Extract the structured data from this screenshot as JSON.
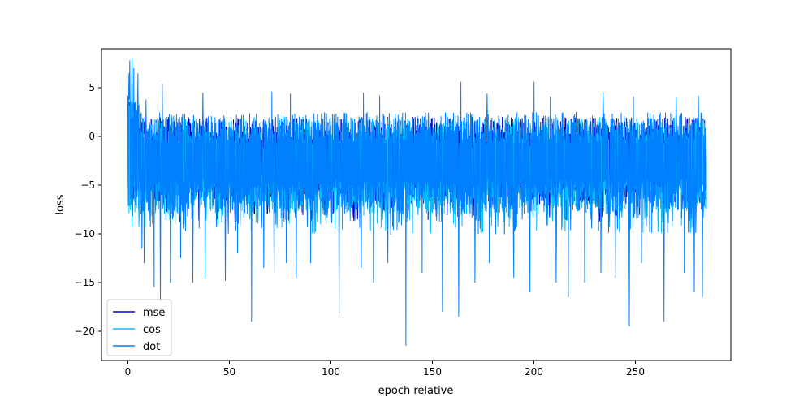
{
  "chart_data": {
    "type": "line",
    "title": "",
    "xlabel": "epoch relative",
    "ylabel": "loss",
    "xlim": [
      -13,
      297
    ],
    "ylim": [
      -23,
      9
    ],
    "xticks": [
      0,
      50,
      100,
      150,
      200,
      250
    ],
    "xtick_labels": [
      "0",
      "50",
      "100",
      "150",
      "200",
      "250"
    ],
    "yticks": [
      5,
      0,
      -5,
      -10,
      -15,
      -20
    ],
    "ytick_labels": [
      "5",
      "0",
      "−5",
      "−10",
      "−15",
      "−20"
    ],
    "grid": false,
    "legend_position": "lower-left",
    "series": [
      {
        "name": "mse",
        "color": "#0000cd",
        "x": [
          0,
          285
        ],
        "mean": -2.0,
        "upper": 2.0,
        "lower": -7.0,
        "low_spikes": [],
        "high_spikes": []
      },
      {
        "name": "cos",
        "color": "#00bfff",
        "x": [
          0,
          285
        ],
        "mean": -3.0,
        "upper": 2.0,
        "lower": -8.0,
        "low_spikes": [],
        "high_spikes": []
      },
      {
        "name": "dot",
        "color": "#0080ff",
        "x": [
          0,
          285
        ],
        "mean": -2.5,
        "upper": 2.5,
        "lower": -8.0,
        "high_spikes": [
          [
            0.5,
            6.5
          ],
          [
            1,
            7.8
          ],
          [
            2,
            8.0
          ],
          [
            3,
            7.0
          ],
          [
            4,
            6.2
          ],
          [
            5,
            6.5
          ],
          [
            9,
            3.8
          ],
          [
            17,
            5.4
          ],
          [
            26,
            4.0
          ],
          [
            37,
            4.5
          ],
          [
            71,
            4.6
          ],
          [
            80,
            4.4
          ],
          [
            104,
            4.1
          ],
          [
            116,
            4.5
          ],
          [
            124,
            4.2
          ],
          [
            164,
            5.6
          ],
          [
            177,
            4.4
          ],
          [
            200,
            5.6
          ],
          [
            208,
            4.1
          ],
          [
            234,
            4.5
          ],
          [
            249,
            4.1
          ],
          [
            270,
            4.0
          ],
          [
            281,
            4.2
          ]
        ],
        "low_spikes": [
          [
            7,
            -11.5
          ],
          [
            8,
            -13
          ],
          [
            13,
            -15.5
          ],
          [
            16,
            -17
          ],
          [
            21,
            -15
          ],
          [
            26,
            -12.5
          ],
          [
            32,
            -15
          ],
          [
            38,
            -14.5
          ],
          [
            48,
            -14.8
          ],
          [
            54,
            -12
          ],
          [
            61,
            -19
          ],
          [
            67,
            -13.5
          ],
          [
            72,
            -14
          ],
          [
            78,
            -13
          ],
          [
            83,
            -14.5
          ],
          [
            90,
            -13
          ],
          [
            104,
            -18.5
          ],
          [
            115,
            -13.5
          ],
          [
            121,
            -15
          ],
          [
            128,
            -13
          ],
          [
            137,
            -21.5
          ],
          [
            145,
            -14
          ],
          [
            155,
            -18
          ],
          [
            163,
            -18.5
          ],
          [
            171,
            -15
          ],
          [
            178,
            -13
          ],
          [
            190,
            -14.5
          ],
          [
            198,
            -16
          ],
          [
            211,
            -15
          ],
          [
            217,
            -16.5
          ],
          [
            225,
            -15
          ],
          [
            233,
            -14
          ],
          [
            240,
            -14.5
          ],
          [
            247,
            -19.5
          ],
          [
            253,
            -13
          ],
          [
            264,
            -19
          ],
          [
            274,
            -14
          ],
          [
            279,
            -16
          ],
          [
            283,
            -16.5
          ]
        ]
      }
    ]
  }
}
